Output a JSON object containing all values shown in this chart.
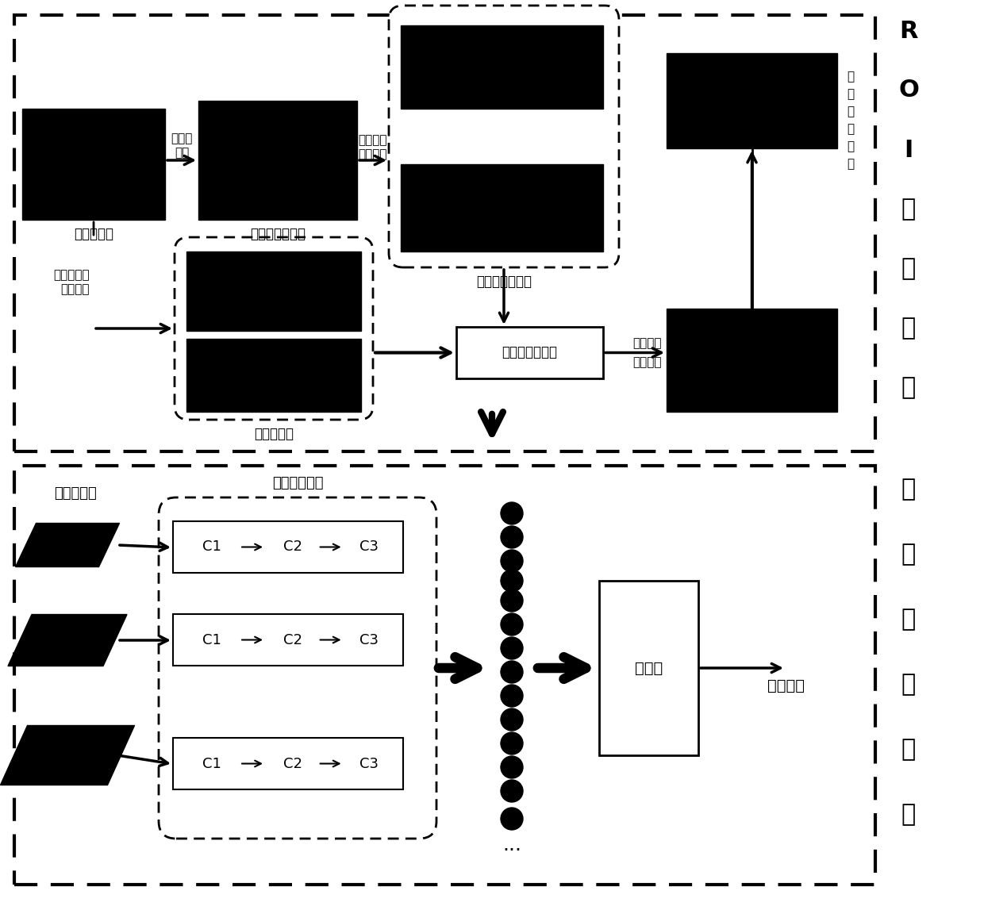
{
  "bg_color": "#ffffff",
  "texts": {
    "input_image": "待处理图像",
    "super_pixel_seg_line1": "超像素",
    "super_pixel_seg_line2": "分割",
    "super_pixel_result": "超像素分割结果",
    "prior_color_line1": "先验颜色",
    "prior_color_line2": "特征计算",
    "prior_color_map": "先验颜色特征图",
    "bayes_color_line1": "贝叶斯颜色",
    "bayes_color_line2": "概率计算",
    "color_prob_map": "颜色概率图",
    "crf_fusion": "条件随机场融合",
    "max_stable": "最大稳定",
    "extreme_region": "极值区域",
    "candidate_extract_chars": [
      "候",
      "选",
      "区",
      "域",
      "提",
      "取"
    ],
    "roi_label_chars": [
      "R",
      "O",
      "I",
      "区",
      "域",
      "提",
      "取"
    ],
    "multi_scale_input": "多尺度输入",
    "network_feature": "网络特征提取",
    "classifier": "分类器",
    "class_result": "分类类别",
    "region_label_chars": [
      "区",
      "域",
      "分",
      "类",
      "识",
      "别"
    ]
  }
}
